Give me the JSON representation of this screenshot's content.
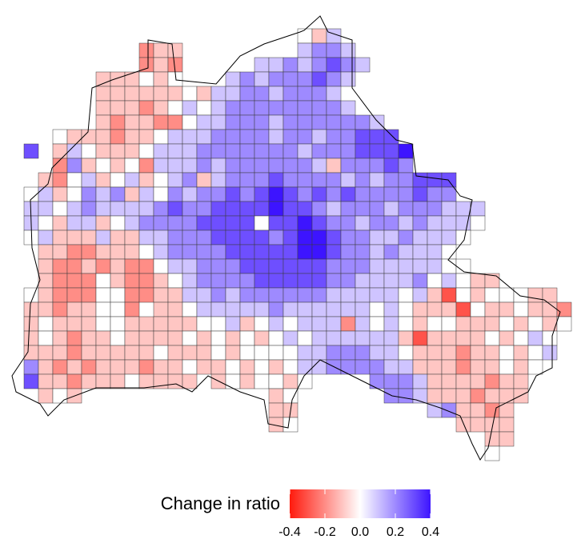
{
  "chart_data": {
    "type": "grid-map",
    "legend_title": "Change in ratio",
    "low_color": "#ff1a0d",
    "mid_color": "#ffffff",
    "high_color": "#3d14ff",
    "colorbar_lim": [
      -0.4,
      0.4
    ],
    "colorbar_ticks": [
      -0.4,
      -0.2,
      {
        "value": 0,
        "label": "0.0"
      },
      0.2,
      0.4
    ],
    "cells": [
      [
        null,
        null,
        null,
        null,
        null,
        null,
        null,
        null,
        null,
        null,
        null,
        null,
        null,
        null,
        null,
        null,
        null,
        null,
        null,
        0,
        -0.1,
        0.1
      ],
      [
        null,
        null,
        null,
        null,
        null,
        null,
        null,
        null,
        -0.2,
        -0.1,
        -0.1,
        null,
        null,
        null,
        null,
        null,
        null,
        null,
        null,
        0.1,
        0.2,
        0.2,
        0.1
      ],
      [
        null,
        null,
        null,
        null,
        null,
        null,
        null,
        null,
        -0.2,
        -0.1,
        -0.2,
        null,
        null,
        null,
        null,
        null,
        0.1,
        0.1,
        0.2,
        0.1,
        0.2,
        0.3,
        0.2,
        0.1
      ],
      [
        null,
        null,
        null,
        null,
        null,
        -0.1,
        -0.1,
        -0.1,
        0,
        -0.1,
        0,
        null,
        null,
        null,
        0.1,
        0.2,
        0.1,
        0.2,
        0.2,
        0.2,
        0.3,
        0.2,
        0.1
      ],
      [
        null,
        null,
        null,
        null,
        null,
        -0.1,
        -0.1,
        -0.1,
        -0.1,
        -0.1,
        -0.1,
        0,
        -0.1,
        0.1,
        0.1,
        0.2,
        0.2,
        0.1,
        0.2,
        0.2,
        0.2,
        0.1
      ],
      [
        null,
        null,
        null,
        null,
        null,
        -0.1,
        -0.1,
        -0.1,
        -0.2,
        -0.1,
        0,
        0.1,
        0,
        0.1,
        0.2,
        0.2,
        0.2,
        0.2,
        0.2,
        0.2,
        0.2,
        0.2,
        0.1
      ],
      [
        null,
        null,
        null,
        null,
        null,
        -0.1,
        -0.2,
        -0.1,
        -0.1,
        -0.2,
        -0.2,
        0,
        0.1,
        0.1,
        0.2,
        0.2,
        0.2,
        0.1,
        0.2,
        0.2,
        0.2,
        0.2,
        0.2,
        0.2,
        0.1
      ],
      [
        null,
        null,
        0,
        -0.1,
        -0.1,
        -0.1,
        -0.2,
        -0.1,
        -0.1,
        0,
        0.1,
        0.1,
        0.1,
        0.2,
        0.2,
        0.2,
        0.2,
        0.1,
        0.2,
        0.2,
        0.1,
        0.2,
        0.2,
        0.3,
        0.3,
        0.3
      ],
      [
        0.3,
        null,
        -0.1,
        0.1,
        0,
        -0.1,
        -0.1,
        -0.1,
        0,
        0.1,
        0.1,
        0.1,
        0.2,
        0.2,
        0.2,
        0.2,
        0.2,
        0.2,
        0.2,
        0.1,
        0.2,
        0.2,
        0.2,
        0.3,
        0.3,
        0.3,
        0.4
      ],
      [
        null,
        null,
        -0.2,
        0.2,
        -0.1,
        0,
        -0.1,
        0,
        -0.2,
        0.1,
        0.1,
        0.1,
        0.2,
        0.1,
        0.2,
        0.2,
        0.2,
        0.2,
        0.2,
        0.2,
        0.1,
        -0.1,
        0.2,
        0.2,
        0.2,
        0.3,
        0.2
      ],
      [
        null,
        -0.1,
        -0.2,
        0,
        0.1,
        -0.1,
        0,
        0.1,
        -0.1,
        0,
        0.1,
        0.2,
        -0.1,
        0.1,
        0.2,
        0.2,
        0.2,
        0.3,
        0.2,
        0.2,
        0.2,
        0.2,
        0.1,
        0.2,
        0.1,
        0.2,
        0.2,
        0.3,
        0.3,
        0.3
      ],
      [
        0,
        0.1,
        -0.1,
        0,
        0.2,
        0.1,
        0.2,
        -0.1,
        0.1,
        0,
        0.2,
        0.1,
        0.2,
        0.2,
        0.3,
        0.2,
        0.3,
        0.4,
        0.3,
        0.2,
        0.3,
        0.2,
        0.3,
        0.2,
        0.2,
        0.2,
        0.2,
        0.3,
        0.2,
        0.2
      ],
      [
        0.1,
        0.1,
        0,
        0.1,
        0.2,
        0.1,
        0.1,
        0.1,
        0.1,
        0.2,
        0.3,
        0.2,
        0.2,
        0.3,
        0.3,
        0.3,
        0.3,
        0.4,
        0.3,
        0.3,
        0.2,
        0.1,
        0.2,
        0.2,
        0.2,
        0.1,
        0.2,
        0.2,
        0.2,
        0.1,
        0.1,
        0.1
      ],
      [
        0.1,
        0,
        -0.1,
        0.1,
        0.1,
        -0.1,
        0,
        0.1,
        0.2,
        0.2,
        0.2,
        0.2,
        0.3,
        0.3,
        0.3,
        0.3,
        0,
        0.3,
        0.3,
        0.4,
        0.3,
        0.2,
        0.2,
        0.1,
        0.2,
        0.2,
        0.1,
        0.2,
        0.1,
        0.1,
        0.1,
        0
      ],
      [
        0,
        0.1,
        -0.1,
        -0.1,
        -0.1,
        0.1,
        -0.1,
        -0.1,
        0.1,
        0.1,
        0.2,
        0.2,
        0.2,
        0.3,
        0.3,
        0.3,
        0.3,
        0.2,
        0.3,
        0.4,
        0.4,
        0.3,
        0.2,
        0.2,
        0.1,
        0.1,
        0.2,
        0.1,
        0.1,
        0.1,
        0
      ],
      [
        null,
        -0.1,
        -0.1,
        -0.2,
        -0.2,
        -0.1,
        -0.1,
        -0.1,
        0,
        0.1,
        0.2,
        0.2,
        0.2,
        0.2,
        0.3,
        0.3,
        0.3,
        0.3,
        0.3,
        0.4,
        0.4,
        0.3,
        0.2,
        0.2,
        0.1,
        0.2,
        0.1,
        0.1,
        0.1,
        0
      ],
      [
        null,
        -0.1,
        -0.2,
        -0.2,
        -0.1,
        -0.2,
        -0.1,
        -0.2,
        -0.2,
        0,
        0.1,
        0.1,
        0.2,
        0.2,
        0.2,
        0.3,
        0.3,
        0.3,
        0.3,
        0.3,
        0.3,
        0.2,
        0.2,
        0.2,
        0.1,
        0.1,
        0.1,
        0.1,
        0.1,
        0,
        0
      ],
      [
        null,
        -0.1,
        -0.2,
        -0.2,
        -0.2,
        0,
        -0.1,
        -0.2,
        -0.2,
        -0.1,
        0,
        0.1,
        0.2,
        0.2,
        0.2,
        0.2,
        0.3,
        0.3,
        0.3,
        0.3,
        0.3,
        0.2,
        0.2,
        0.1,
        0.1,
        0.1,
        0.1,
        0.2,
        0,
        0.1,
        0,
        -0.1,
        -0.1
      ],
      [
        0,
        -0.1,
        -0.2,
        -0.2,
        -0.2,
        0,
        0,
        -0.2,
        -0.2,
        -0.1,
        -0.1,
        0.1,
        0.1,
        0.2,
        0.1,
        0.2,
        0.2,
        0.2,
        0.2,
        0.2,
        0.2,
        0.1,
        0.1,
        0.1,
        0.1,
        0.1,
        0,
        0.1,
        -0.1,
        -0.3,
        0,
        -0.1,
        0,
        0,
        0,
        -0.1,
        -0.1
      ],
      [
        -0.1,
        -0.1,
        -0.2,
        -0.1,
        -0.1,
        0,
        0,
        -0.2,
        null,
        -0.1,
        -0.1,
        0,
        0.1,
        0.1,
        0.1,
        0.1,
        0.1,
        0.2,
        0.1,
        0.1,
        0.1,
        0.1,
        0.1,
        0.1,
        0,
        0.1,
        0,
        -0.1,
        -0.1,
        -0.1,
        -0.3,
        0,
        -0.1,
        -0.1,
        0,
        -0.1,
        -0.1,
        -0.2
      ],
      [
        -0.1,
        0,
        -0.1,
        -0.1,
        -0.1,
        0,
        0,
        -0.1,
        -0.1,
        -0.1,
        -0.1,
        -0.1,
        0,
        0,
        0.1,
        -0.1,
        0,
        0.1,
        0,
        0.1,
        0.1,
        0.1,
        -0.2,
        0.1,
        0,
        0.1,
        0,
        -0.1,
        0,
        0,
        -0.1,
        -0.1,
        -0.1,
        0,
        -0.1,
        0,
        -0.1,
        0
      ],
      [
        -0.1,
        0,
        -0.1,
        -0.2,
        -0.1,
        -0.1,
        0,
        -0.1,
        -0.1,
        -0.1,
        -0.1,
        0,
        -0.1,
        0,
        -0.1,
        0,
        -0.1,
        0,
        0.1,
        0,
        0.1,
        0.1,
        0.1,
        0.1,
        0.1,
        0.1,
        -0.1,
        -0.3,
        -0.1,
        -0.1,
        -0.1,
        -0.1,
        0,
        -0.1,
        0,
        0.1,
        0
      ],
      [
        -0.1,
        -0.1,
        -0.1,
        -0.2,
        -0.1,
        -0.1,
        -0.1,
        -0.1,
        -0.1,
        0,
        -0.1,
        -0.1,
        -0.1,
        0,
        -0.1,
        0,
        0,
        0,
        0,
        0.1,
        0.1,
        0.2,
        0.2,
        0.2,
        0.1,
        0.1,
        0,
        -0.1,
        -0.1,
        -0.1,
        -0.2,
        -0.1,
        -0.1,
        0,
        -0.1,
        0,
        0.1
      ],
      [
        0.2,
        -0.1,
        -0.2,
        -0.1,
        -0.2,
        -0.1,
        -0.1,
        -0.1,
        -0.2,
        -0.1,
        -0.1,
        0,
        -0.1,
        -0.1,
        0,
        -0.1,
        0,
        -0.1,
        0,
        0.1,
        0.1,
        0.2,
        0.2,
        0.2,
        0.2,
        0.1,
        0.1,
        -0.1,
        -0.1,
        -0.1,
        -0.2,
        -0.1,
        -0.1,
        0,
        -0.1,
        0
      ],
      [
        0.3,
        -0.1,
        -0.1,
        -0.2,
        -0.1,
        -0.1,
        -0.1,
        0,
        -0.1,
        -0.1,
        -0.1,
        -0.1,
        null,
        -0.1,
        0,
        -0.1,
        0,
        0,
        -0.1,
        0,
        null,
        null,
        null,
        null,
        0.2,
        0.2,
        0.2,
        0.1,
        -0.1,
        -0.1,
        -0.1,
        -0.1,
        -0.2,
        -0.1,
        -0.1
      ],
      [
        null,
        -0.1,
        0,
        -0.1,
        null,
        null,
        null,
        null,
        null,
        null,
        null,
        null,
        null,
        null,
        null,
        null,
        null,
        -0.1,
        0,
        null,
        null,
        null,
        null,
        null,
        null,
        0.2,
        0.2,
        0.1,
        -0.1,
        -0.1,
        -0.1,
        -0.2,
        -0.1,
        -0.1,
        -0.1
      ],
      [
        null,
        null,
        null,
        null,
        null,
        null,
        null,
        null,
        null,
        null,
        null,
        null,
        null,
        null,
        null,
        null,
        null,
        -0.1,
        -0.1,
        null,
        null,
        null,
        null,
        null,
        null,
        null,
        null,
        null,
        0.1,
        0.2,
        -0.1,
        -0.1,
        -0.2,
        -0.1
      ],
      [
        null,
        null,
        null,
        null,
        null,
        null,
        null,
        null,
        null,
        null,
        null,
        null,
        null,
        null,
        null,
        null,
        null,
        -0.1,
        0,
        null,
        null,
        null,
        null,
        null,
        null,
        null,
        null,
        null,
        null,
        null,
        -0.1,
        -0.1,
        -0.1,
        -0.1
      ],
      [
        null,
        null,
        null,
        null,
        null,
        null,
        null,
        null,
        null,
        null,
        null,
        null,
        null,
        null,
        null,
        null,
        null,
        null,
        null,
        null,
        null,
        null,
        null,
        null,
        null,
        null,
        null,
        null,
        null,
        null,
        null,
        null,
        -0.1,
        -0.1
      ],
      [
        null,
        null,
        null,
        null,
        null,
        null,
        null,
        null,
        null,
        null,
        null,
        null,
        null,
        null,
        null,
        null,
        null,
        null,
        null,
        null,
        null,
        null,
        null,
        null,
        null,
        null,
        null,
        null,
        null,
        null,
        null,
        null,
        0
      ]
    ]
  }
}
